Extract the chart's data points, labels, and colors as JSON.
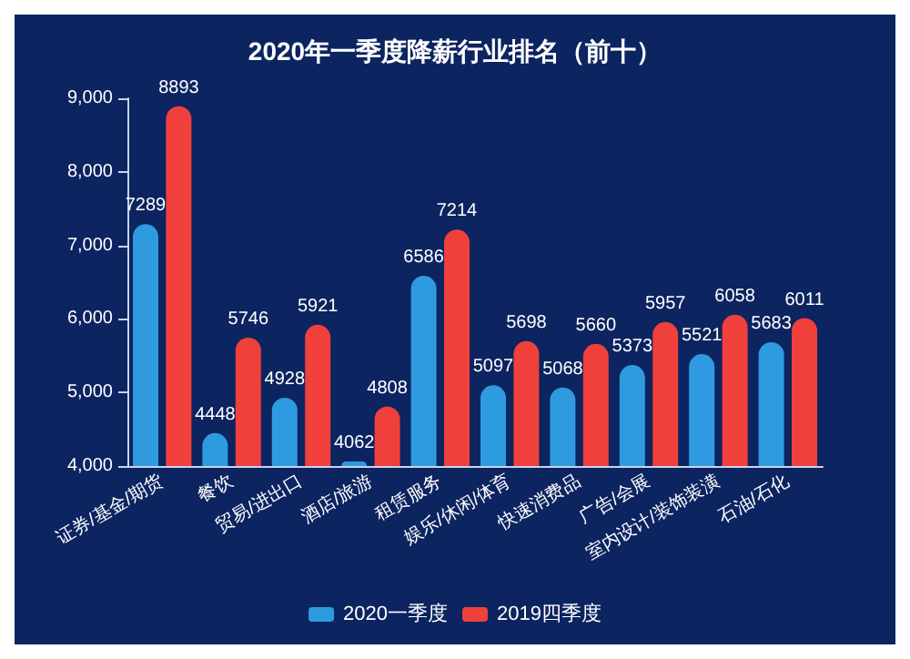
{
  "chart_data": {
    "type": "bar",
    "title": "2020年一季度降薪行业排名（前十）",
    "categories": [
      "证券/基金/期货",
      "餐饮",
      "贸易/进出口",
      "酒店/旅游",
      "租赁服务",
      "娱乐/休闲/体育",
      "快速消费品",
      "广告/会展",
      "室内设计/装饰装潢",
      "石油/石化"
    ],
    "series": [
      {
        "name": "2020一季度",
        "color": "#2e9be0",
        "values": [
          7289,
          4448,
          4928,
          4062,
          6586,
          5097,
          5068,
          5373,
          5521,
          5683
        ]
      },
      {
        "name": "2019四季度",
        "color": "#f0403c",
        "values": [
          8893,
          5746,
          5921,
          4808,
          7214,
          5698,
          5660,
          5957,
          6058,
          6011
        ]
      }
    ],
    "ylim": [
      4000,
      9000
    ],
    "yticks": [
      {
        "value": 4000,
        "label": "4,000"
      },
      {
        "value": 5000,
        "label": "5,000"
      },
      {
        "value": 6000,
        "label": "6,000"
      },
      {
        "value": 7000,
        "label": "7,000"
      },
      {
        "value": 8000,
        "label": "8,000"
      },
      {
        "value": 9000,
        "label": "9,000"
      }
    ],
    "grid": false,
    "legend": "bottom",
    "data_labels": true
  }
}
